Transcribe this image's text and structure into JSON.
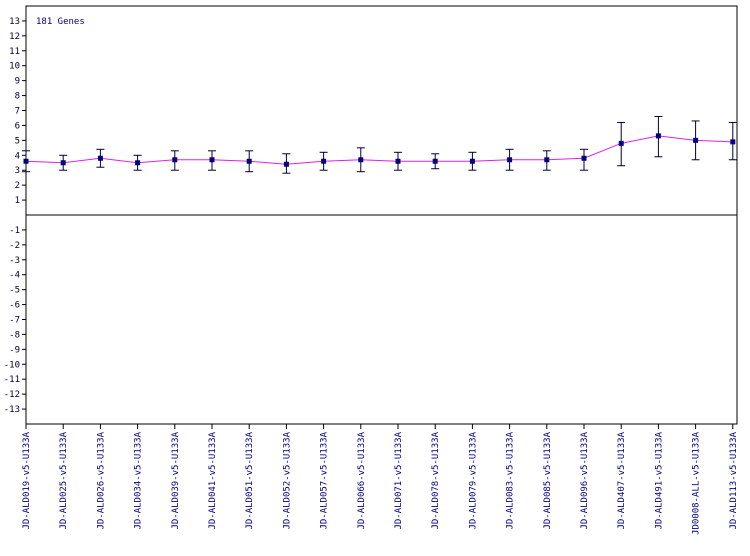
{
  "chart_data": {
    "type": "line",
    "annotation": "181 Genes",
    "ylim": [
      -14,
      14
    ],
    "yticks": [
      13,
      12,
      11,
      10,
      9,
      8,
      7,
      6,
      5,
      4,
      3,
      2,
      1,
      -1,
      -2,
      -3,
      -4,
      -5,
      -6,
      -7,
      -8,
      -9,
      -10,
      -11,
      -12,
      -13
    ],
    "grid": false,
    "legend": "none",
    "colors": {
      "line": "#e020e0",
      "marker": "#000080",
      "error_bar": "#000033",
      "axis": "#000000"
    },
    "categories": [
      "JD-ALD019-v5-U133A",
      "JD-ALD025-v5-U133A",
      "JD-ALD026-v5-U133A",
      "JD-ALD034-v5-U133A",
      "JD-ALD039-v5-U133A",
      "JD-ALD041-v5-U133A",
      "JD-ALD051-v5-U133A",
      "JD-ALD052-v5-U133A",
      "JD-ALD057-v5-U133A",
      "JD-ALD066-v5-U133A",
      "JD-ALD071-v5-U133A",
      "JD-ALD078-v5-U133A",
      "JD-ALD079-v5-U133A",
      "JD-ALD083-v5-U133A",
      "JD-ALD085-v5-U133A",
      "JD-ALD096-v5-U133A",
      "JD-ALD407-v5-U133A",
      "JD-ALD491-v5-U133A",
      "JD0008-ALL-v5-U133A",
      "JD-ALD113-v5-U133A"
    ],
    "series": [
      {
        "values": [
          3.6,
          3.5,
          3.8,
          3.5,
          3.7,
          3.7,
          3.6,
          3.4,
          3.6,
          3.7,
          3.6,
          3.6,
          3.6,
          3.7,
          3.7,
          3.8,
          4.8,
          5.3,
          5.0,
          4.9
        ],
        "error_low": [
          2.9,
          3.0,
          3.2,
          3.0,
          3.0,
          3.0,
          2.9,
          2.8,
          3.0,
          2.9,
          3.0,
          3.1,
          3.0,
          3.0,
          3.0,
          3.0,
          3.3,
          3.9,
          3.7,
          3.7
        ],
        "error_high": [
          4.3,
          4.0,
          4.4,
          4.0,
          4.3,
          4.3,
          4.3,
          4.1,
          4.2,
          4.5,
          4.2,
          4.1,
          4.2,
          4.4,
          4.3,
          4.4,
          6.2,
          6.6,
          6.3,
          6.2
        ]
      }
    ]
  }
}
